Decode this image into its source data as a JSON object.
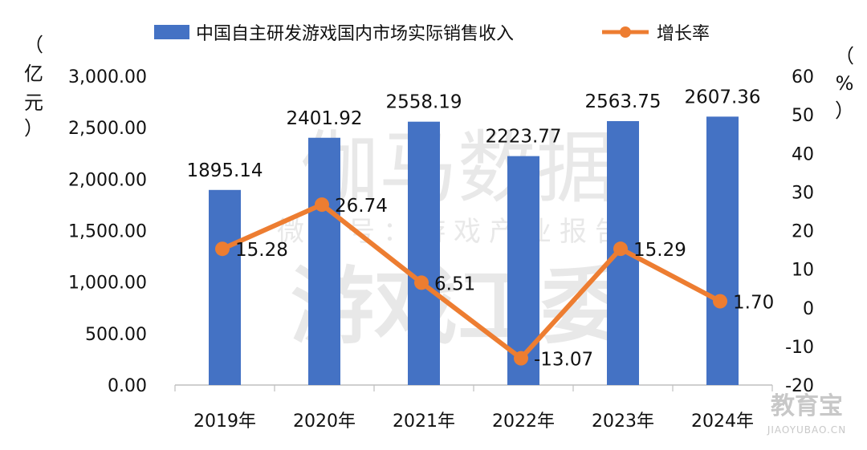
{
  "chart_data": {
    "type": "bar",
    "categories": [
      "2019年",
      "2020年",
      "2021年",
      "2022年",
      "2023年",
      "2024年"
    ],
    "series": [
      {
        "name": "中国自主研发游戏国内市场实际销售收入",
        "type": "bar",
        "axis": "left",
        "values": [
          1895.14,
          2401.92,
          2558.19,
          2223.77,
          2563.75,
          2607.36
        ],
        "labels": [
          "1895.14",
          "2401.92",
          "2558.19",
          "2223.77",
          "2563.75",
          "2607.36"
        ]
      },
      {
        "name": "增长率",
        "type": "line",
        "axis": "right",
        "values": [
          15.28,
          26.74,
          6.51,
          -13.07,
          15.29,
          1.7
        ],
        "labels": [
          "15.28",
          "26.74",
          "6.51",
          "-13.07",
          "15.29",
          "1.70"
        ]
      }
    ],
    "y_left": {
      "unit_label": [
        "（",
        "亿",
        "元",
        "）"
      ],
      "ylim": [
        0,
        3000
      ],
      "ticks": [
        "0.00",
        "500.00",
        "1,000.00",
        "1,500.00",
        "2,000.00",
        "2,500.00",
        "3,000.00"
      ],
      "tick_values": [
        0,
        500,
        1000,
        1500,
        2000,
        2500,
        3000
      ]
    },
    "y_right": {
      "unit_label": [
        "（",
        "%",
        "）"
      ],
      "ylim": [
        -20,
        60
      ],
      "ticks": [
        "-20",
        "-10",
        "0",
        "10",
        "20",
        "30",
        "40",
        "50",
        "60"
      ],
      "tick_values": [
        -20,
        -10,
        0,
        10,
        20,
        30,
        40,
        50,
        60
      ]
    },
    "legend_position": "top",
    "grid": false
  },
  "watermarks": {
    "line1": "伽马数据",
    "line2": "微信号：游戏产业报告",
    "line3": "游戏工委",
    "corner_brand": "教育宝",
    "corner_url": "JIAOYUBAO.CN"
  },
  "colors": {
    "bar": "#4472c4",
    "line": "#ed7d31",
    "axis": "#bfbfbf"
  }
}
